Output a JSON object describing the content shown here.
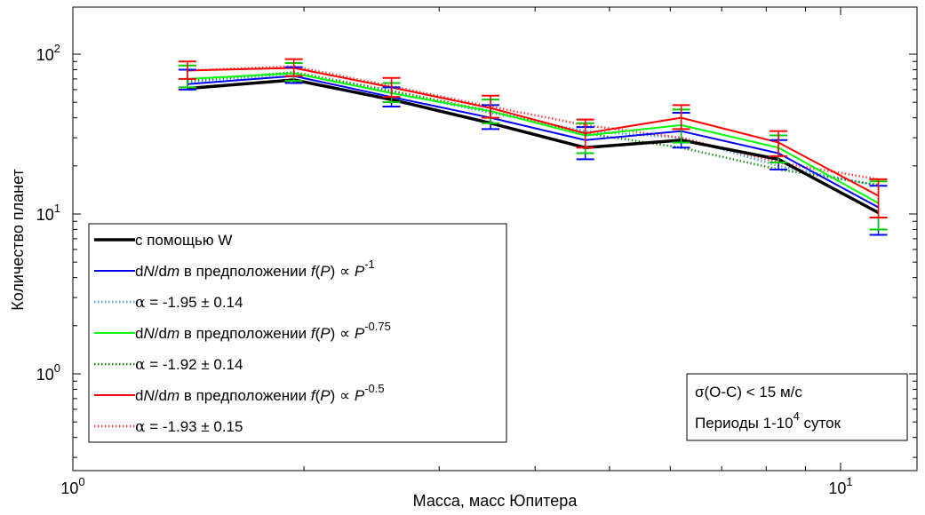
{
  "chart_data": {
    "type": "line",
    "xlabel": "Масса, масс Юпитера",
    "ylabel": "Количество планет",
    "xscale": "log",
    "yscale": "log",
    "xlim": [
      1,
      13
    ],
    "ylim": [
      0.3,
      200
    ],
    "grid": false,
    "x": [
      1.41,
      1.94,
      2.6,
      3.5,
      4.65,
      6.2,
      8.3,
      11.2
    ],
    "x_ticks": [
      {
        "value": 1,
        "base": "10",
        "exp": "0"
      },
      {
        "value": 10,
        "base": "10",
        "exp": "1"
      }
    ],
    "y_ticks": [
      {
        "value": 1,
        "base": "10",
        "exp": "0"
      },
      {
        "value": 10,
        "base": "10",
        "exp": "1"
      },
      {
        "value": 100,
        "base": "10",
        "exp": "2"
      }
    ],
    "series": [
      {
        "name": "с помощью W",
        "color": "#000000",
        "style": "solid-thick",
        "values": [
          61,
          69,
          52,
          37,
          26,
          29,
          22,
          10.2
        ]
      },
      {
        "name": "P^-1",
        "color": "#0000ff",
        "style": "solid",
        "error": "#0000ff",
        "values": [
          65,
          73,
          54,
          40,
          29,
          33,
          24,
          11
        ],
        "err_low": [
          60,
          66,
          47,
          34,
          22,
          26,
          19,
          7.4
        ],
        "err_high": [
          80,
          83,
          62,
          48,
          35,
          43,
          29,
          15
        ]
      },
      {
        "name": "α = -1.95 ± 0.14",
        "color": "#4fa3d8",
        "style": "dotted",
        "values": [
          66,
          76,
          58,
          43,
          33,
          30,
          20,
          15
        ]
      },
      {
        "name": "P^-0.75",
        "color": "#00ff00",
        "style": "solid",
        "error": "#00cc00",
        "values": [
          70,
          76,
          57,
          44,
          31,
          36,
          26,
          11.7
        ],
        "err_low": [
          62,
          68,
          50,
          37,
          24,
          28,
          21,
          8
        ],
        "err_high": [
          85,
          88,
          66,
          52,
          37,
          45,
          31,
          16
        ]
      },
      {
        "name": "α = -1.92 ± 0.14",
        "color": "#228b22",
        "style": "dotted",
        "values": [
          68,
          77,
          59,
          44,
          32,
          26,
          19,
          15.2
        ]
      },
      {
        "name": "P^-0.5",
        "color": "#ff0000",
        "style": "solid",
        "error": "#ff0000",
        "values": [
          79,
          82,
          62,
          46,
          32,
          40,
          28,
          13
        ],
        "err_low": [
          70,
          73,
          54,
          40,
          26,
          34,
          23,
          9.5
        ],
        "err_high": [
          90,
          93,
          71,
          55,
          39,
          48,
          33,
          16.5
        ]
      },
      {
        "name": "α = -1.93 ± 0.15",
        "color": "#ff4040",
        "style": "dotted",
        "values": [
          79,
          84,
          63,
          47,
          36,
          30,
          21,
          16.5
        ]
      }
    ]
  },
  "legend": {
    "items": [
      {
        "text": "с помощью W",
        "color": "#000000",
        "style": "solid-thick"
      },
      {
        "pre": "d",
        "i1": "N",
        "mid1": "/d",
        "i2": "m",
        "mid2": " в предположении ",
        "i3": "f",
        "mid3": "(",
        "i4": "P",
        "mid4": ") ∝ ",
        "i5": "P",
        "sup": "-1",
        "color": "#0000ff",
        "style": "solid"
      },
      {
        "alpha": "α",
        "rest": " = -1.95 ± 0.14",
        "color": "#4fa3d8",
        "style": "dotted"
      },
      {
        "pre": "d",
        "i1": "N",
        "mid1": "/d",
        "i2": "m",
        "mid2": " в предположении ",
        "i3": "f",
        "mid3": "(",
        "i4": "P",
        "mid4": ") ∝ ",
        "i5": "P",
        "sup": "-0.75",
        "color": "#00ff00",
        "style": "solid"
      },
      {
        "alpha": "α",
        "rest": " = -1.92 ± 0.14",
        "color": "#228b22",
        "style": "dotted"
      },
      {
        "pre": "d",
        "i1": "N",
        "mid1": "/d",
        "i2": "m",
        "mid2": " в предположении ",
        "i3": "f",
        "mid3": "(",
        "i4": "P",
        "mid4": ") ∝ ",
        "i5": "P",
        "sup": "-0.5",
        "color": "#ff0000",
        "style": "solid"
      },
      {
        "alpha": "α",
        "rest": " = -1.93 ± 0.15",
        "color": "#ff4040",
        "style": "dotted"
      }
    ]
  },
  "annotation": {
    "line1": "σ(O-C) < 15 м/с",
    "line2_pre": "Периоды 1-10",
    "line2_sup": "4",
    "line2_post": " суток"
  }
}
